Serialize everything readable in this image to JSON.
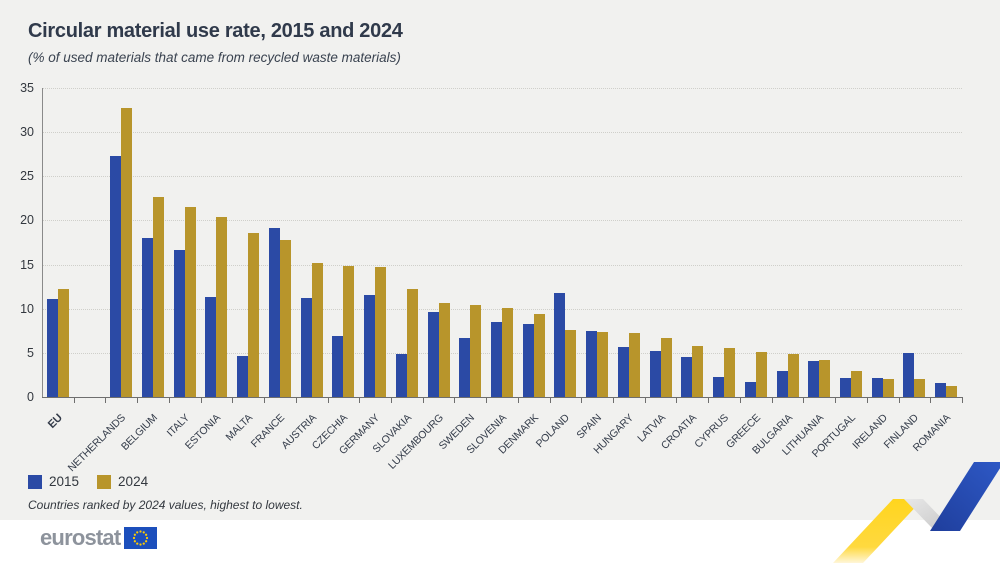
{
  "header": {
    "title": "Circular material use rate, 2015 and 2024",
    "subtitle": "(% of used materials that came from recycled waste materials)"
  },
  "chart_data": {
    "type": "bar",
    "title": "Circular material use rate, 2015 and 2024",
    "subtitle": "(% of used materials that came from recycled waste materials)",
    "xlabel": "",
    "ylabel": "% of used materials that came from recycled waste materials",
    "ylim": [
      0,
      35
    ],
    "ytick_step": 5,
    "yticks": [
      0,
      5,
      10,
      15,
      20,
      25,
      30,
      35
    ],
    "grid": "horizontal dotted",
    "legend_position": "bottom-left",
    "layout_note": "EU group separated from countries by one empty slot; countries ranked by 2024 values highest to lowest",
    "categories": [
      "EU",
      "NETHERLANDS",
      "BELGIUM",
      "ITALY",
      "ESTONIA",
      "MALTA",
      "FRANCE",
      "AUSTRIA",
      "CZECHIA",
      "GERMANY",
      "SLOVAKIA",
      "LUXEMBOURG",
      "SWEDEN",
      "SLOVENIA",
      "DENMARK",
      "POLAND",
      "SPAIN",
      "HUNGARY",
      "LATVIA",
      "CROATIA",
      "CYPRUS",
      "GREECE",
      "BULGARIA",
      "LITHUANIA",
      "PORTUGAL",
      "IRELAND",
      "FINLAND",
      "ROMANIA"
    ],
    "series": [
      {
        "name": "2015",
        "color": "#2B4AA5",
        "values": [
          11.1,
          27.3,
          18.0,
          16.6,
          11.3,
          4.6,
          19.1,
          11.2,
          6.9,
          11.6,
          4.9,
          9.6,
          6.7,
          8.5,
          8.3,
          11.8,
          7.5,
          5.7,
          5.2,
          4.5,
          2.3,
          1.7,
          3.0,
          4.1,
          2.1,
          2.1,
          5.0,
          1.6
        ]
      },
      {
        "name": "2024",
        "color": "#B8952B",
        "values": [
          12.2,
          32.7,
          22.6,
          21.5,
          20.4,
          18.6,
          17.8,
          15.2,
          14.8,
          14.7,
          12.2,
          10.7,
          10.4,
          10.1,
          9.4,
          7.6,
          7.4,
          7.3,
          6.7,
          5.8,
          5.5,
          5.1,
          4.9,
          4.2,
          3.0,
          2.0,
          2.0,
          1.2
        ]
      }
    ]
  },
  "legend": {
    "items": [
      {
        "label": "2015",
        "color": "#2B4AA5"
      },
      {
        "label": "2024",
        "color": "#B8952B"
      }
    ]
  },
  "footnote": "Countries ranked by 2024 values, highest to lowest.",
  "footer": {
    "logo_text": "eurostat",
    "flag_icon": "eu-flag-icon"
  },
  "colors": {
    "background": "#F1F1EF",
    "footer_band": "#FFFFFF",
    "title_text": "#303A4B",
    "axis_text": "#33383F",
    "gridline": "#CFCFCA",
    "axis_line": "#6E6E6E",
    "series_2015": "#2B4AA5",
    "series_2024": "#B8952B",
    "logo_text": "#8D939C",
    "eu_flag_blue": "#1C4FBC",
    "eu_flag_stars": "#FFCC00",
    "ribbon_yellow": "#FFD51E",
    "ribbon_blue": "#2750BE",
    "ribbon_gray": "#D9D9D9"
  }
}
